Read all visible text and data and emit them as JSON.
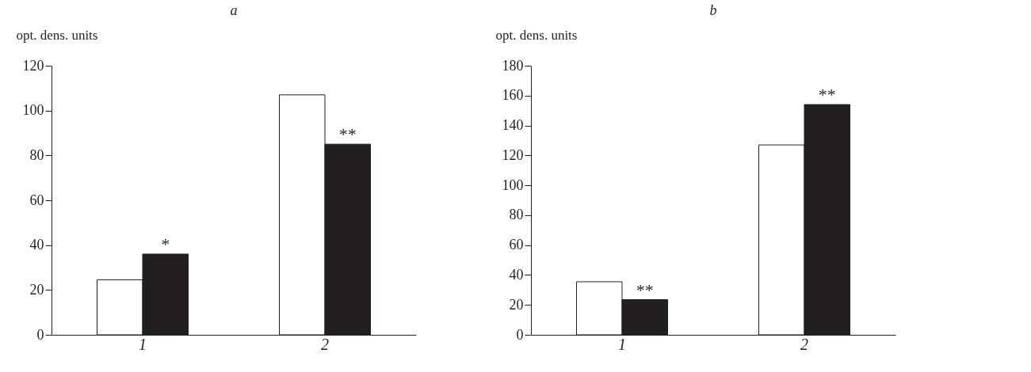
{
  "chart_data": [
    {
      "type": "bar",
      "title": "a",
      "ylabel": "opt. dens. units",
      "categories": [
        "1",
        "2"
      ],
      "series": [
        {
          "color": "#ffffff",
          "values": [
            24.5,
            107
          ]
        },
        {
          "color": "#231f20",
          "values": [
            36,
            85
          ]
        }
      ],
      "ylim": [
        0,
        120
      ],
      "yticks": [
        0,
        20,
        40,
        60,
        80,
        100,
        120
      ],
      "grid": false,
      "legend": false,
      "annotations": [
        {
          "text": "*",
          "x": "1",
          "y": 36
        },
        {
          "text": "**",
          "x": "2",
          "y": 85
        }
      ]
    },
    {
      "type": "bar",
      "title": "b",
      "ylabel": "opt. dens. units",
      "categories": [
        "1",
        "2"
      ],
      "series": [
        {
          "color": "#ffffff",
          "values": [
            35.5,
            127
          ]
        },
        {
          "color": "#231f20",
          "values": [
            23.5,
            154
          ]
        }
      ],
      "ylim": [
        0,
        180
      ],
      "yticks": [
        0,
        20,
        40,
        60,
        80,
        100,
        120,
        140,
        160,
        180
      ],
      "grid": false,
      "legend": false,
      "annotations": [
        {
          "text": "**",
          "x": "1",
          "y": 23.5
        },
        {
          "text": "**",
          "x": "2",
          "y": 154
        }
      ]
    }
  ]
}
